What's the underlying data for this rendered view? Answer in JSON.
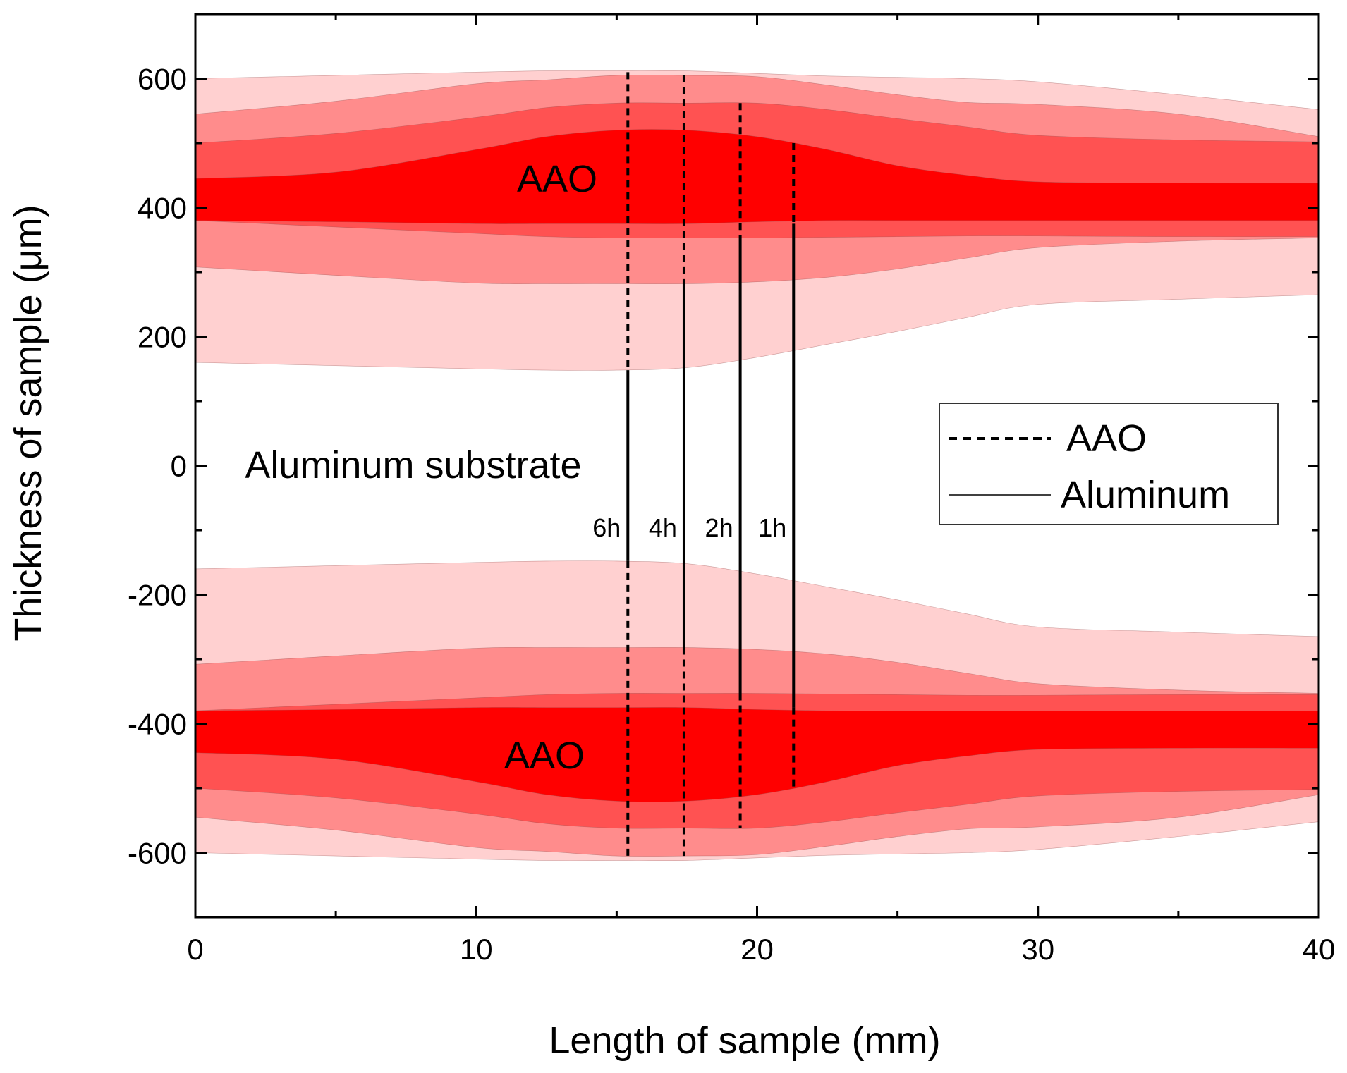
{
  "chart_data": {
    "type": "area",
    "title": "",
    "xlabel": "Length of sample (mm)",
    "ylabel": "Thickness of sample (μm)",
    "xlim": [
      0,
      40
    ],
    "ylim": [
      -700,
      700
    ],
    "xticks": [
      0,
      10,
      20,
      30,
      40
    ],
    "yticks": [
      -600,
      -400,
      -200,
      0,
      200,
      400,
      600
    ],
    "x": [
      0,
      5,
      10,
      12.5,
      15,
      17.5,
      20,
      22.5,
      25,
      27.5,
      30,
      35,
      40
    ],
    "layers": [
      {
        "name": "6h",
        "color": "#FFD0D0",
        "upper": [
          600,
          605,
          610,
          612,
          612,
          612,
          608,
          604,
          602,
          600,
          595,
          575,
          552
        ],
        "lower": [
          160,
          155,
          150,
          148,
          148,
          152,
          168,
          188,
          208,
          230,
          250,
          258,
          265
        ]
      },
      {
        "name": "4h",
        "color": "#FF8C8C",
        "upper": [
          545,
          565,
          592,
          598,
          605,
          605,
          603,
          590,
          575,
          563,
          560,
          545,
          510
        ],
        "lower": [
          308,
          295,
          283,
          282,
          282,
          282,
          285,
          292,
          305,
          322,
          338,
          348,
          353
        ]
      },
      {
        "name": "2h",
        "color": "#FF5252",
        "upper": [
          500,
          515,
          540,
          555,
          562,
          562,
          562,
          552,
          538,
          525,
          512,
          505,
          502
        ],
        "lower": [
          380,
          370,
          360,
          355,
          353,
          353,
          353,
          354,
          355,
          356,
          356,
          355,
          355
        ]
      },
      {
        "name": "1h",
        "color": "#FF0000",
        "upper": [
          445,
          455,
          490,
          510,
          520,
          520,
          510,
          490,
          465,
          450,
          440,
          438,
          438
        ],
        "lower": [
          380,
          378,
          375,
          375,
          375,
          375,
          378,
          380,
          380,
          380,
          380,
          380,
          380
        ]
      }
    ],
    "time_lines": [
      {
        "label": "6h",
        "x": 15.4,
        "aao_top": 610,
        "al_top": 148
      },
      {
        "label": "4h",
        "x": 17.4,
        "aao_top": 605,
        "al_top": 282
      },
      {
        "label": "2h",
        "x": 19.4,
        "aao_top": 562,
        "al_top": 353
      },
      {
        "label": "1h",
        "x": 21.3,
        "aao_top": 500,
        "al_top": 375
      }
    ],
    "annotations": {
      "aao_upper": "AAO",
      "aao_lower": "AAO",
      "substrate": "Aluminum substrate"
    },
    "legend": {
      "position": "right-middle",
      "entries": [
        {
          "label": "AAO",
          "style": "dashed"
        },
        {
          "label": "Aluminum",
          "style": "solid"
        }
      ]
    }
  }
}
